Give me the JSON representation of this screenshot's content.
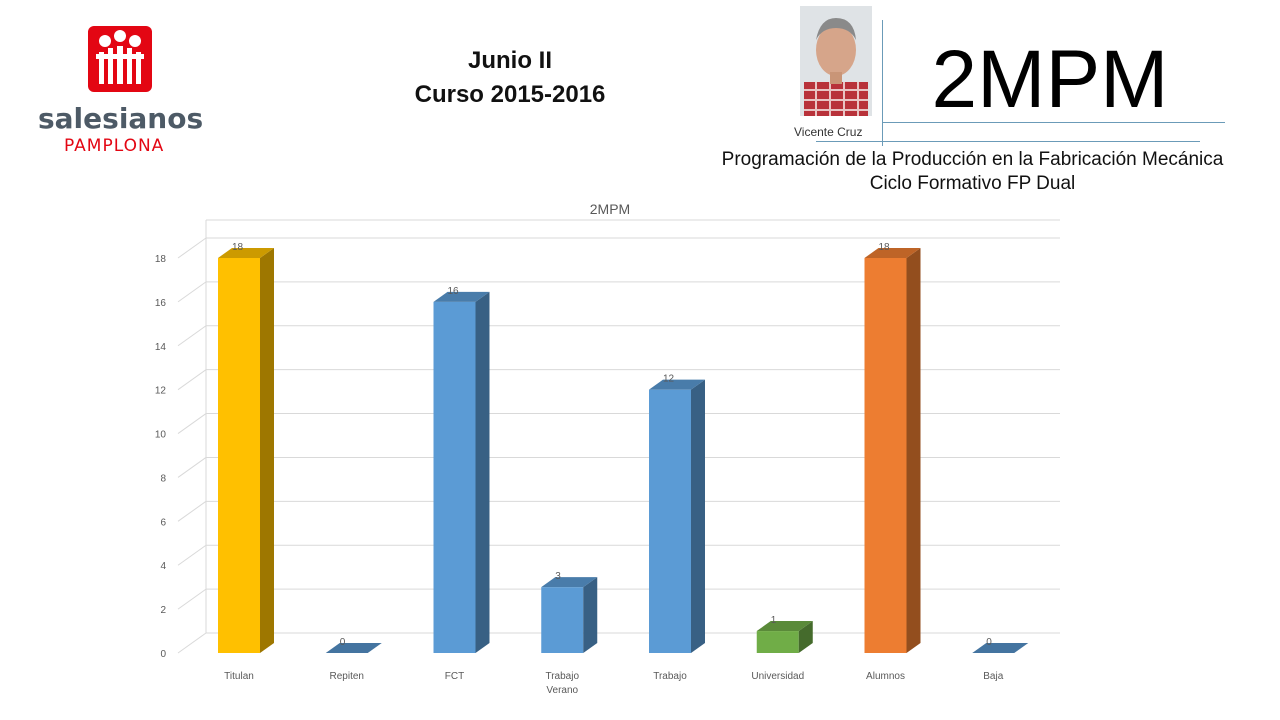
{
  "header": {
    "logo_name": "salesianos",
    "logo_sub": "PAMPLONA",
    "title_line1": "Junio II",
    "title_line2": "Curso 2015-2016",
    "photo_caption": "Vicente Cruz",
    "big_code": "2MPM",
    "subtitle_line1": "Programación de la Producción en la Fabricación Mecánica",
    "subtitle_line2": "Ciclo Formativo FP Dual"
  },
  "colors": {
    "brand_red": "#e30613",
    "yellow": "#ffc000",
    "blue": "#5b9bd5",
    "green": "#70ad47",
    "orange": "#ed7d31"
  },
  "chart_data": {
    "type": "bar",
    "title": "2MPM",
    "categories": [
      "Titulan",
      "Repiten",
      "FCT",
      "Trabajo Verano",
      "Trabajo",
      "Universidad",
      "Alumnos",
      "Baja"
    ],
    "values": [
      18,
      0,
      16,
      3,
      12,
      1,
      18,
      0
    ],
    "bar_colors": [
      "#ffc000",
      "#5b9bd5",
      "#5b9bd5",
      "#5b9bd5",
      "#5b9bd5",
      "#70ad47",
      "#ed7d31",
      "#5b9bd5"
    ],
    "ylim": [
      0,
      18
    ],
    "yticks": [
      0,
      2,
      4,
      6,
      8,
      10,
      12,
      14,
      16,
      18
    ],
    "grid": true,
    "style": "3d-column"
  }
}
